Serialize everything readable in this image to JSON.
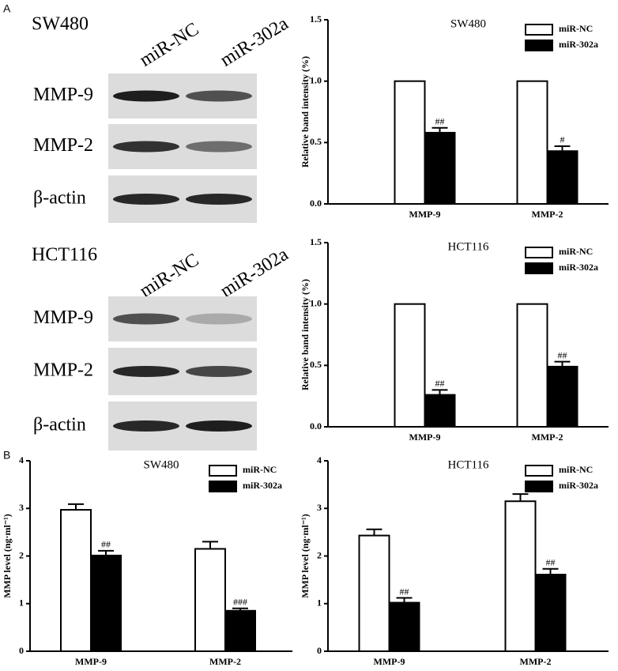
{
  "panel_labels": [
    "A",
    "B"
  ],
  "blots": [
    {
      "title": "SW480",
      "lanes": [
        "miR-NC",
        "miR-302a"
      ],
      "rows": [
        "MMP-9",
        "MMP-2",
        "β-actin"
      ]
    },
    {
      "title": "HCT116",
      "lanes": [
        "miR-NC",
        "miR-302a"
      ],
      "rows": [
        "MMP-9",
        "MMP-2",
        "β-actin"
      ]
    }
  ],
  "chart_data": [
    {
      "type": "bar",
      "title": "SW480",
      "y_label": "Relative band intensity (%)",
      "categories": [
        "MMP-9",
        "MMP-2"
      ],
      "ylim": [
        0,
        1.5
      ],
      "yticks": [
        {
          "value": 0,
          "label": "0.0"
        },
        0.5,
        {
          "value": 1,
          "label": "1.0"
        },
        1.5
      ],
      "series": [
        {
          "name": "miR-NC",
          "color": "#ffffff",
          "values": [
            1.0,
            1.0
          ],
          "errors": [
            0,
            0
          ],
          "annotations": [
            null,
            null
          ]
        },
        {
          "name": "miR-302a",
          "color": "#000000",
          "values": [
            0.58,
            0.43
          ],
          "errors": [
            0.04,
            0.04
          ],
          "annotations": [
            "##",
            "#"
          ]
        }
      ]
    },
    {
      "type": "bar",
      "title": "HCT116",
      "y_label": "Relative band intensity (%)",
      "categories": [
        "MMP-9",
        "MMP-2"
      ],
      "ylim": [
        0,
        1.5
      ],
      "yticks": [
        {
          "value": 0,
          "label": "0.0"
        },
        0.5,
        {
          "value": 1,
          "label": "1.0"
        },
        1.5
      ],
      "series": [
        {
          "name": "miR-NC",
          "color": "#ffffff",
          "values": [
            1.0,
            1.0
          ],
          "errors": [
            0,
            0
          ],
          "annotations": [
            null,
            null
          ]
        },
        {
          "name": "miR-302a",
          "color": "#000000",
          "values": [
            0.26,
            0.49
          ],
          "errors": [
            0.04,
            0.04
          ],
          "annotations": [
            "##",
            "##"
          ]
        }
      ]
    },
    {
      "type": "bar",
      "title": "SW480",
      "y_label": "MMP level (ng·ml⁻¹)",
      "categories": [
        "MMP-9",
        "MMP-2"
      ],
      "ylim": [
        0,
        4
      ],
      "yticks": [
        0,
        1,
        2,
        3,
        4
      ],
      "series": [
        {
          "name": "miR-NC",
          "color": "#ffffff",
          "values": [
            2.97,
            2.15
          ],
          "errors": [
            0.12,
            0.15
          ],
          "annotations": [
            null,
            null
          ]
        },
        {
          "name": "miR-302a",
          "color": "#000000",
          "values": [
            2.01,
            0.85
          ],
          "errors": [
            0.1,
            0.05
          ],
          "annotations": [
            "##",
            "###"
          ]
        }
      ]
    },
    {
      "type": "bar",
      "title": "HCT116",
      "y_label": "MMP level (ng·ml⁻¹)",
      "categories": [
        "MMP-9",
        "MMP-2"
      ],
      "ylim": [
        0,
        4
      ],
      "yticks": [
        0,
        1,
        2,
        3,
        4
      ],
      "series": [
        {
          "name": "miR-NC",
          "color": "#ffffff",
          "values": [
            2.43,
            3.15
          ],
          "errors": [
            0.13,
            0.15
          ],
          "annotations": [
            null,
            null
          ]
        },
        {
          "name": "miR-302a",
          "color": "#000000",
          "values": [
            1.02,
            1.61
          ],
          "errors": [
            0.1,
            0.12
          ],
          "annotations": [
            "##",
            "##"
          ]
        }
      ]
    }
  ]
}
